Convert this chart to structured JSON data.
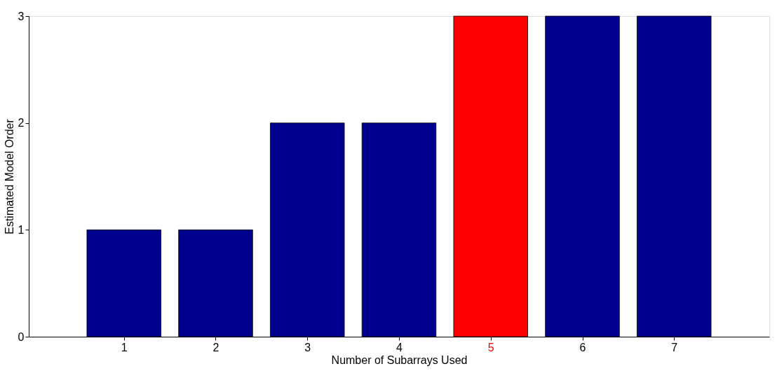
{
  "chart_data": {
    "type": "bar",
    "xlabel": "Number of Subarrays Used",
    "ylabel": "Estimated Model Order",
    "x": [
      1,
      2,
      3,
      4,
      5,
      6,
      7
    ],
    "values": [
      1,
      1,
      2,
      2,
      3,
      3,
      3
    ],
    "colors": [
      "#00008f",
      "#00008f",
      "#00008f",
      "#00008f",
      "#ff0000",
      "#00008f",
      "#00008f"
    ],
    "xlim": [
      0,
      8
    ],
    "xticks": [
      1,
      2,
      3,
      4,
      5,
      6,
      7
    ],
    "ylim": [
      0,
      3
    ],
    "yticks": [
      0,
      1,
      2,
      3
    ],
    "grid": false
  }
}
